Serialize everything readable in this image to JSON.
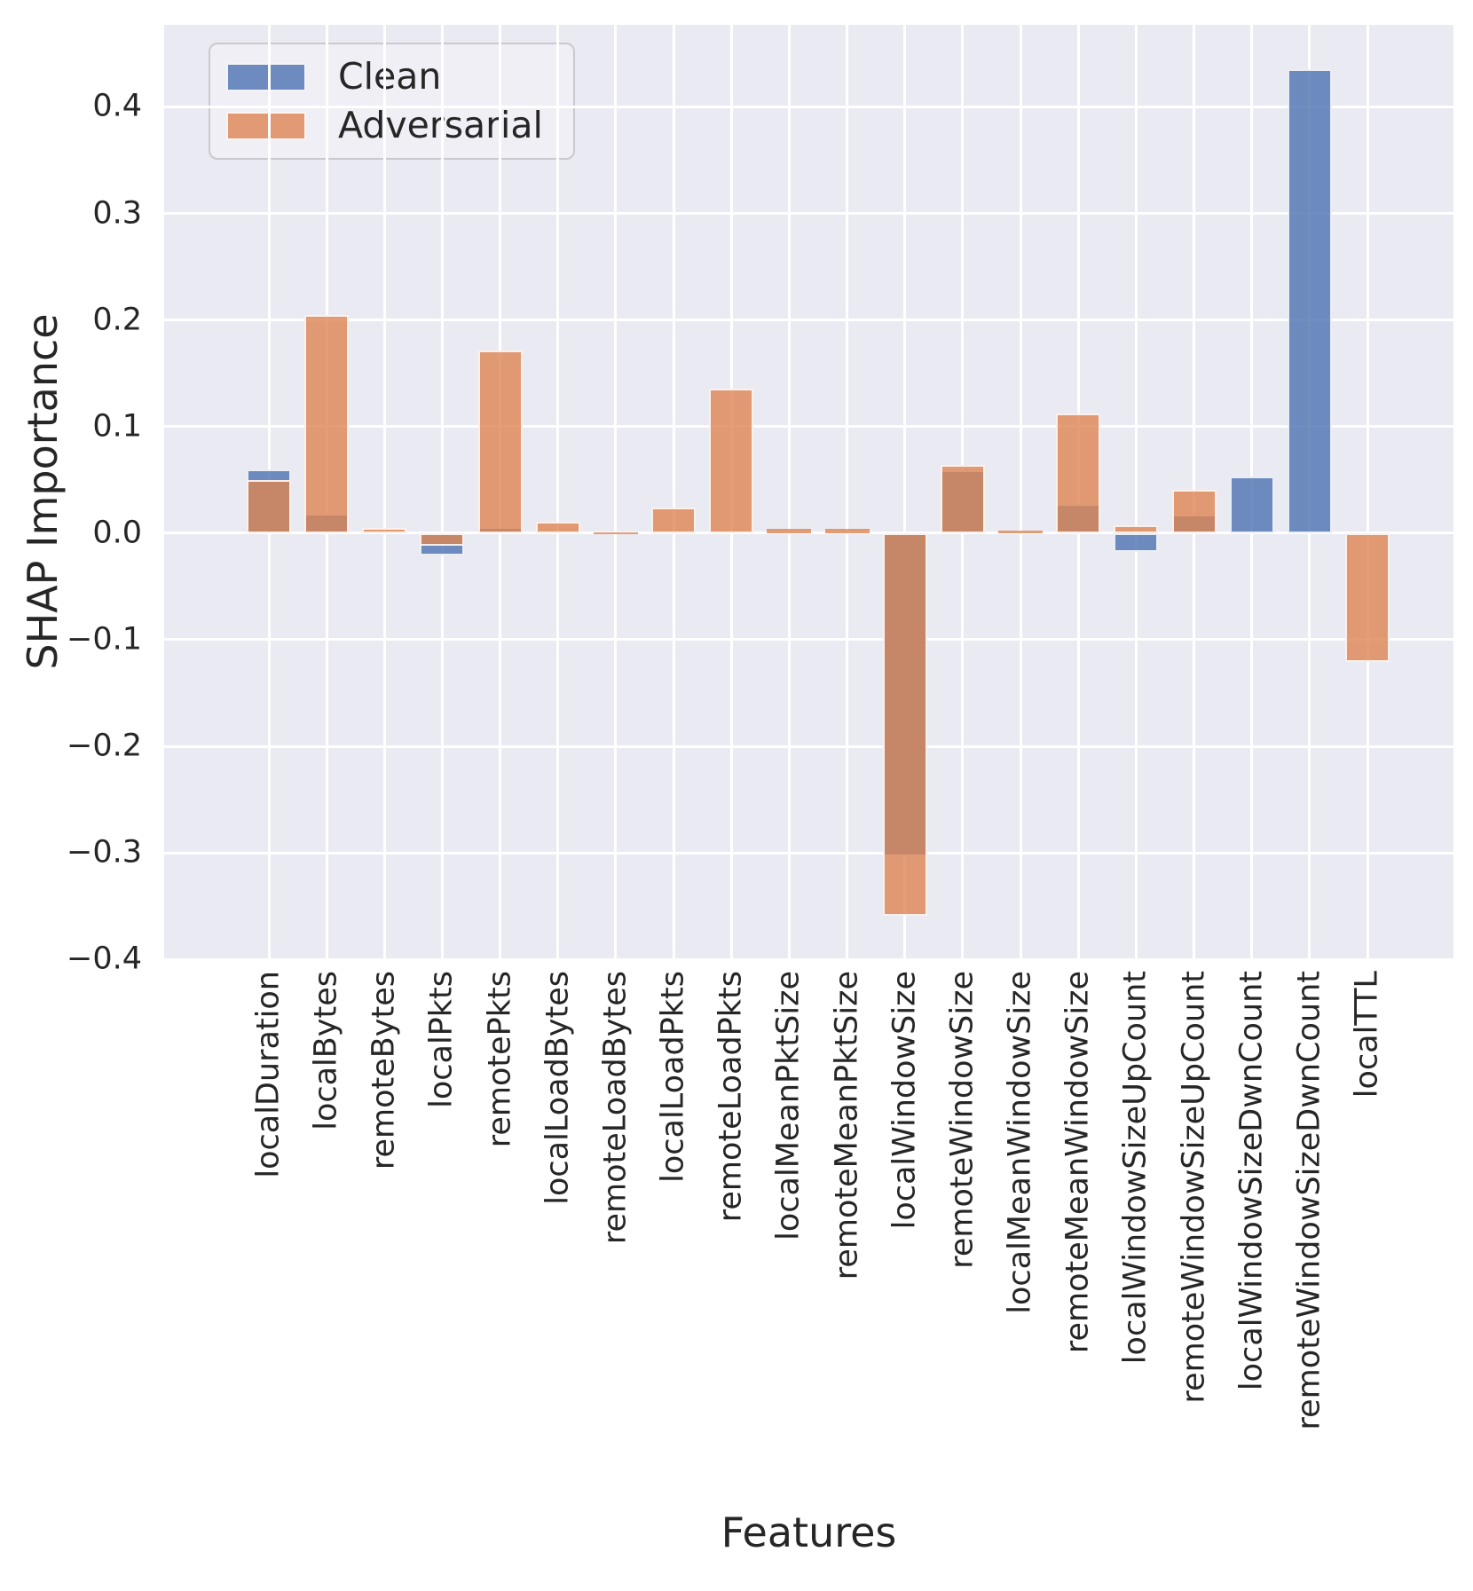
{
  "chart_data": {
    "type": "bar",
    "title": "",
    "xlabel": "Features",
    "ylabel": "SHAP Importance",
    "ylim": [
      -0.399,
      0.477
    ],
    "yticks": [
      0.4,
      0.3,
      0.2,
      0.1,
      0.0,
      -0.1,
      -0.2,
      -0.3,
      -0.4
    ],
    "grid": true,
    "legend_position": "upper left",
    "bar_style": "overlapping-translucent",
    "plot_bg_color": "#eaeaf2",
    "gridline_color": "#ffffff",
    "categories": [
      "localDuration",
      "localBytes",
      "remoteBytes",
      "localPkts",
      "remotePkts",
      "localLoadBytes",
      "remoteLoadBytes",
      "localLoadPkts",
      "remoteLoadPkts",
      "localMeanPktSize",
      "remoteMeanPktSize",
      "localWindowSize",
      "remoteWindowSize",
      "localMeanWindowSize",
      "remoteMeanWindowSize",
      "localWindowSizeUpCount",
      "remoteWindowSizeUpCount",
      "localWindowSizeDwnCount",
      "remoteWindowSizeDwnCount",
      "localTTL"
    ],
    "series": [
      {
        "name": "Clean",
        "color": "#4C72B0",
        "alpha": 0.8,
        "values": [
          0.06,
          0.018,
          0,
          -0.021,
          0.004,
          0,
          0,
          0,
          0,
          0,
          0,
          -0.303,
          0.059,
          0,
          0.027,
          -0.018,
          0.017,
          0.053,
          0.435,
          0
        ]
      },
      {
        "name": "Adversarial",
        "color": "#DD8452",
        "alpha": 0.8,
        "values": [
          0.05,
          0.205,
          0.005,
          -0.012,
          0.171,
          0.011,
          0.001,
          0.024,
          0.136,
          0.004,
          0.004,
          -0.359,
          0.064,
          0.002,
          0.112,
          0.007,
          0.041,
          0,
          0,
          -0.121
        ]
      }
    ]
  }
}
